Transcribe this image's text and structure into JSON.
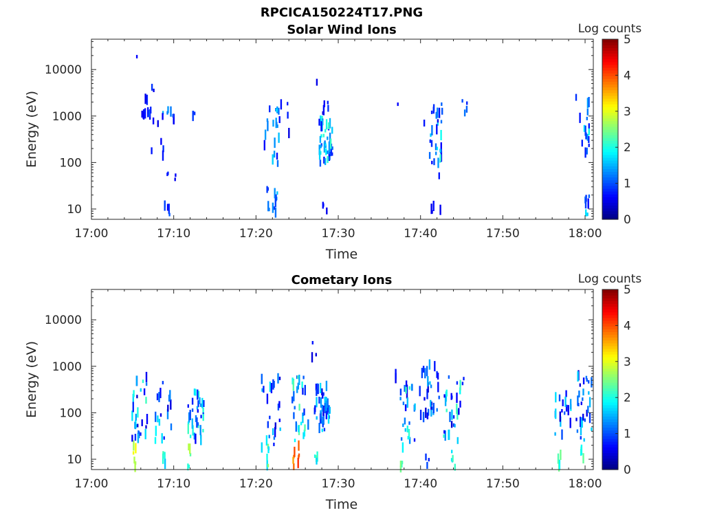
{
  "figure": {
    "title": "RPCICA150224T17.PNG"
  },
  "chart_data": [
    {
      "type": "heatmap",
      "title": "Solar Wind Ions",
      "xlabel": "Time",
      "ylabel": "Energy (eV)",
      "x_ticks": [
        "17:00",
        "17:10",
        "17:20",
        "17:30",
        "17:40",
        "17:50",
        "18:00"
      ],
      "y_ticks": [
        "10",
        "100",
        "1000",
        "10000"
      ],
      "y_scale": "log",
      "xlim": [
        "17:00",
        "18:01"
      ],
      "ylim": [
        6,
        45000
      ],
      "colorbar": {
        "label": "Log counts",
        "range": [
          0,
          5
        ],
        "ticks": [
          "0",
          "1",
          "2",
          "3",
          "4",
          "5"
        ],
        "colormap": "jet"
      },
      "clusters": [
        {
          "t": [
            5.3,
            5.5
          ],
          "e": [
            16000,
            19000
          ],
          "v": [
            0.6,
            0.9
          ],
          "n": 1
        },
        {
          "t": [
            6.0,
            7.2
          ],
          "e": [
            1000,
            1400
          ],
          "v": [
            0.5,
            1.2
          ],
          "n": 9
        },
        {
          "t": [
            6.0,
            7.0
          ],
          "e": [
            1900,
            2400
          ],
          "v": [
            0.5,
            0.9
          ],
          "n": 3
        },
        {
          "t": [
            7.2,
            7.6
          ],
          "e": [
            3500,
            4800
          ],
          "v": [
            0.5,
            0.9
          ],
          "n": 2
        },
        {
          "t": [
            7.0,
            9.0
          ],
          "e": [
            130,
            900
          ],
          "v": [
            0.4,
            0.9
          ],
          "n": 6
        },
        {
          "t": [
            8.5,
            10.0
          ],
          "e": [
            700,
            1500
          ],
          "v": [
            0.5,
            1.5
          ],
          "n": 8
        },
        {
          "t": [
            9.0,
            10.5
          ],
          "e": [
            40,
            80
          ],
          "v": [
            0.5,
            0.9
          ],
          "n": 4
        },
        {
          "t": [
            8.6,
            9.6
          ],
          "e": [
            6,
            18
          ],
          "v": [
            0.6,
            1.2
          ],
          "n": 5
        },
        {
          "t": [
            12.0,
            12.6
          ],
          "e": [
            600,
            1300
          ],
          "v": [
            0.5,
            1.0
          ],
          "n": 3
        },
        {
          "t": [
            20.8,
            23.0
          ],
          "e": [
            80,
            1500
          ],
          "v": [
            0.6,
            1.8
          ],
          "n": 20
        },
        {
          "t": [
            21.2,
            22.6
          ],
          "e": [
            6,
            30
          ],
          "v": [
            0.5,
            1.6
          ],
          "n": 12
        },
        {
          "t": [
            22.0,
            24.2
          ],
          "e": [
            400,
            2200
          ],
          "v": [
            0.4,
            0.9
          ],
          "n": 4
        },
        {
          "t": [
            26.5,
            27.5
          ],
          "e": [
            5000,
            6500
          ],
          "v": [
            0.5,
            0.8
          ],
          "n": 1
        },
        {
          "t": [
            27.6,
            29.2
          ],
          "e": [
            90,
            800
          ],
          "v": [
            0.6,
            2.3
          ],
          "n": 45
        },
        {
          "t": [
            27.8,
            28.8
          ],
          "e": [
            1000,
            2000
          ],
          "v": [
            0.4,
            0.9
          ],
          "n": 5
        },
        {
          "t": [
            28.0,
            28.6
          ],
          "e": [
            6,
            22
          ],
          "v": [
            0.5,
            1.0
          ],
          "n": 3
        },
        {
          "t": [
            36.8,
            37.2
          ],
          "e": [
            1600,
            1900
          ],
          "v": [
            0.5,
            0.8
          ],
          "n": 1
        },
        {
          "t": [
            40.0,
            40.4
          ],
          "e": [
            700,
            900
          ],
          "v": [
            0.5,
            0.8
          ],
          "n": 1
        },
        {
          "t": [
            41.0,
            42.6
          ],
          "e": [
            90,
            800
          ],
          "v": [
            0.5,
            2.2
          ],
          "n": 22
        },
        {
          "t": [
            41.2,
            42.6
          ],
          "e": [
            1000,
            2200
          ],
          "v": [
            0.5,
            2.0
          ],
          "n": 8
        },
        {
          "t": [
            41.8,
            42.2
          ],
          "e": [
            50,
            70
          ],
          "v": [
            0.5,
            0.8
          ],
          "n": 1
        },
        {
          "t": [
            41.2,
            42.4
          ],
          "e": [
            7,
            14
          ],
          "v": [
            0.5,
            1.2
          ],
          "n": 4
        },
        {
          "t": [
            44.6,
            45.6
          ],
          "e": [
            1000,
            2200
          ],
          "v": [
            0.5,
            1.2
          ],
          "n": 4
        },
        {
          "t": [
            58.4,
            59.6
          ],
          "e": [
            150,
            4000
          ],
          "v": [
            0.4,
            0.9
          ],
          "n": 3
        },
        {
          "t": [
            59.8,
            60.4
          ],
          "e": [
            100,
            2500
          ],
          "v": [
            0.6,
            2.0
          ],
          "n": 14
        },
        {
          "t": [
            59.8,
            60.4
          ],
          "e": [
            6,
            22
          ],
          "v": [
            0.6,
            1.8
          ],
          "n": 8
        }
      ]
    },
    {
      "type": "heatmap",
      "title": "Cometary Ions",
      "xlabel": "Time",
      "ylabel": "Energy (eV)",
      "x_ticks": [
        "17:00",
        "17:10",
        "17:20",
        "17:30",
        "17:40",
        "17:50",
        "18:00"
      ],
      "y_ticks": [
        "10",
        "100",
        "1000",
        "10000"
      ],
      "y_scale": "log",
      "xlim": [
        "17:00",
        "18:01"
      ],
      "ylim": [
        6,
        45000
      ],
      "colorbar": {
        "label": "Log counts",
        "range": [
          0,
          5
        ],
        "ticks": [
          "0",
          "1",
          "2",
          "3",
          "4",
          "5"
        ],
        "colormap": "jet"
      },
      "clusters": [
        {
          "t": [
            5.0,
            5.4
          ],
          "e": [
            6,
            20
          ],
          "v": [
            2.6,
            3.2
          ],
          "n": 6
        },
        {
          "t": [
            4.8,
            6.8
          ],
          "e": [
            25,
            600
          ],
          "v": [
            0.4,
            2.2
          ],
          "n": 30
        },
        {
          "t": [
            7.6,
            9.6
          ],
          "e": [
            25,
            500
          ],
          "v": [
            0.4,
            2.0
          ],
          "n": 18
        },
        {
          "t": [
            8.6,
            9.0
          ],
          "e": [
            6,
            18
          ],
          "v": [
            1.6,
            2.4
          ],
          "n": 4
        },
        {
          "t": [
            11.6,
            12.0
          ],
          "e": [
            6,
            20
          ],
          "v": [
            2.0,
            2.8
          ],
          "n": 5
        },
        {
          "t": [
            11.6,
            13.6
          ],
          "e": [
            25,
            300
          ],
          "v": [
            0.6,
            2.2
          ],
          "n": 35
        },
        {
          "t": [
            20.4,
            23.0
          ],
          "e": [
            15,
            600
          ],
          "v": [
            0.4,
            1.8
          ],
          "n": 25
        },
        {
          "t": [
            21.2,
            21.8
          ],
          "e": [
            6,
            20
          ],
          "v": [
            1.6,
            2.8
          ],
          "n": 6
        },
        {
          "t": [
            24.4,
            25.2
          ],
          "e": [
            6,
            20
          ],
          "v": [
            3.4,
            4.2
          ],
          "n": 8
        },
        {
          "t": [
            24.0,
            26.4
          ],
          "e": [
            25,
            700
          ],
          "v": [
            0.6,
            2.4
          ],
          "n": 30
        },
        {
          "t": [
            26.6,
            27.4
          ],
          "e": [
            1200,
            3500
          ],
          "v": [
            0.4,
            0.9
          ],
          "n": 3
        },
        {
          "t": [
            27.0,
            27.4
          ],
          "e": [
            6,
            18
          ],
          "v": [
            1.6,
            2.4
          ],
          "n": 4
        },
        {
          "t": [
            27.0,
            29.0
          ],
          "e": [
            40,
            400
          ],
          "v": [
            0.4,
            1.8
          ],
          "n": 40
        },
        {
          "t": [
            36.8,
            37.2
          ],
          "e": [
            500,
            700
          ],
          "v": [
            0.5,
            0.9
          ],
          "n": 2
        },
        {
          "t": [
            37.4,
            39.4
          ],
          "e": [
            25,
            400
          ],
          "v": [
            0.4,
            2.2
          ],
          "n": 25
        },
        {
          "t": [
            37.4,
            37.8
          ],
          "e": [
            6,
            18
          ],
          "v": [
            1.8,
            2.6
          ],
          "n": 5
        },
        {
          "t": [
            39.8,
            42.2
          ],
          "e": [
            70,
            1100
          ],
          "v": [
            0.4,
            1.6
          ],
          "n": 30
        },
        {
          "t": [
            40.4,
            41.0
          ],
          "e": [
            6,
            14
          ],
          "v": [
            0.6,
            1.2
          ],
          "n": 3
        },
        {
          "t": [
            42.6,
            45.2
          ],
          "e": [
            25,
            600
          ],
          "v": [
            0.4,
            2.2
          ],
          "n": 30
        },
        {
          "t": [
            43.6,
            44.2
          ],
          "e": [
            6,
            16
          ],
          "v": [
            1.6,
            2.4
          ],
          "n": 5
        },
        {
          "t": [
            56.2,
            58.2
          ],
          "e": [
            25,
            350
          ],
          "v": [
            0.4,
            1.8
          ],
          "n": 18
        },
        {
          "t": [
            56.6,
            57.0
          ],
          "e": [
            6,
            16
          ],
          "v": [
            1.8,
            2.6
          ],
          "n": 4
        },
        {
          "t": [
            58.8,
            60.8
          ],
          "e": [
            25,
            900
          ],
          "v": [
            0.4,
            1.8
          ],
          "n": 30
        },
        {
          "t": [
            59.2,
            59.8
          ],
          "e": [
            6,
            16
          ],
          "v": [
            1.6,
            2.4
          ],
          "n": 4
        }
      ]
    }
  ]
}
